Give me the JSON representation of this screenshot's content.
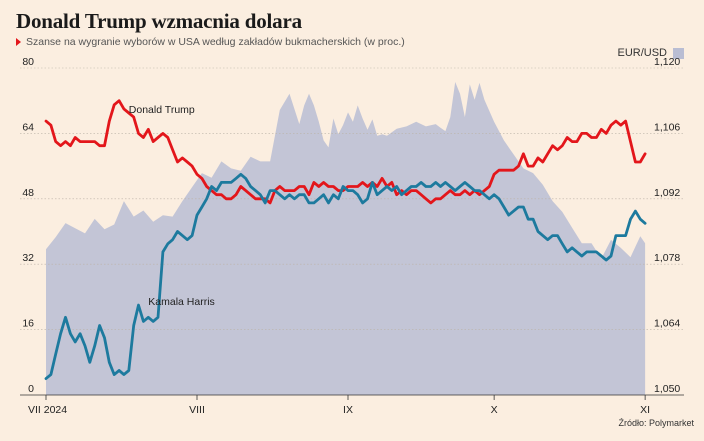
{
  "title": "Donald Trump wzmacnia dolara",
  "subtitle": "Szanse na wygranie wyborów w USA według zakładów bukmacherskich (w proc.)",
  "source": "Źródło: Polymarket",
  "colors": {
    "trump": "#e3161b",
    "harris": "#1d7a9e",
    "eur": "#b9bdd3",
    "background": "#fbeee0"
  },
  "chart_data": {
    "type": "line",
    "left_axis": {
      "min": 0,
      "max": 80,
      "ticks": [
        "80",
        "64",
        "48",
        "32",
        "16",
        "0"
      ]
    },
    "right_axis": {
      "label": "EUR/USD",
      "min": 1.05,
      "max": 1.12,
      "ticks": [
        "1,120",
        "1,106",
        "1,092",
        "1,078",
        "1,064",
        "1,050"
      ]
    },
    "x_axis": {
      "ticks": [
        "VII 2024",
        "VIII",
        "IX",
        "X",
        "XI"
      ],
      "tick_pos": [
        0,
        31,
        62,
        92,
        123
      ],
      "max_day": 124
    },
    "grid": true,
    "series": [
      {
        "name": "Donald Trump",
        "axis": "left",
        "label_at": [
          17,
          69
        ],
        "x": [
          0,
          1,
          2,
          3,
          4,
          5,
          6,
          7,
          8,
          9,
          10,
          11,
          12,
          13,
          14,
          15,
          16,
          17,
          18,
          19,
          20,
          21,
          22,
          23,
          24,
          25,
          26,
          27,
          28,
          29,
          30,
          31,
          32,
          33,
          34,
          35,
          36,
          37,
          38,
          39,
          40,
          41,
          42,
          43,
          44,
          45,
          46,
          47,
          48,
          49,
          50,
          51,
          52,
          53,
          54,
          55,
          56,
          57,
          58,
          59,
          60,
          61,
          62,
          63,
          64,
          65,
          66,
          67,
          68,
          69,
          70,
          71,
          72,
          73,
          74,
          75,
          76,
          77,
          78,
          79,
          80,
          81,
          82,
          83,
          84,
          85,
          86,
          87,
          88,
          89,
          90,
          91,
          92,
          93,
          94,
          95,
          96,
          97,
          98,
          99,
          100,
          101,
          102,
          103,
          104,
          105,
          106,
          107,
          108,
          109,
          110,
          111,
          112,
          113,
          114,
          115,
          116,
          117,
          118,
          119,
          120,
          121,
          122,
          123
        ],
        "values": [
          67,
          66,
          62,
          61,
          62,
          61,
          63,
          62,
          62,
          62,
          62,
          61,
          61,
          67,
          71,
          72,
          70,
          69,
          68,
          64,
          63,
          65,
          62,
          63,
          64,
          63,
          60,
          57,
          58,
          57,
          56,
          54,
          53,
          51,
          50,
          49,
          49,
          48,
          48,
          49,
          51,
          50,
          49,
          48,
          48,
          48,
          47,
          50,
          51,
          50,
          50,
          50,
          51,
          51,
          49,
          52,
          51,
          52,
          51,
          51,
          50,
          50,
          51,
          51,
          51,
          52,
          51,
          52,
          51,
          53,
          51,
          52,
          49,
          50,
          49,
          50,
          50,
          49,
          48,
          47,
          48,
          48,
          49,
          50,
          49,
          49,
          50,
          49,
          50,
          49,
          50,
          51,
          54,
          55,
          55,
          55,
          55,
          56,
          59,
          56,
          56,
          58,
          57,
          59,
          61,
          60,
          61,
          63,
          62,
          62,
          64,
          64,
          63,
          63,
          65,
          64,
          66,
          67,
          66,
          67,
          62,
          57,
          57,
          59
        ]
      },
      {
        "name": "Kamala Harris",
        "axis": "left",
        "label_at": [
          21,
          22
        ],
        "x": [
          0,
          1,
          2,
          3,
          4,
          5,
          6,
          7,
          8,
          9,
          10,
          11,
          12,
          13,
          14,
          15,
          16,
          17,
          18,
          19,
          20,
          21,
          22,
          23,
          24,
          25,
          26,
          27,
          28,
          29,
          30,
          31,
          32,
          33,
          34,
          35,
          36,
          37,
          38,
          39,
          40,
          41,
          42,
          43,
          44,
          45,
          46,
          47,
          48,
          49,
          50,
          51,
          52,
          53,
          54,
          55,
          56,
          57,
          58,
          59,
          60,
          61,
          62,
          63,
          64,
          65,
          66,
          67,
          68,
          69,
          70,
          71,
          72,
          73,
          74,
          75,
          76,
          77,
          78,
          79,
          80,
          81,
          82,
          83,
          84,
          85,
          86,
          87,
          88,
          89,
          90,
          91,
          92,
          93,
          94,
          95,
          96,
          97,
          98,
          99,
          100,
          101,
          102,
          103,
          104,
          105,
          106,
          107,
          108,
          109,
          110,
          111,
          112,
          113,
          114,
          115,
          116,
          117,
          118,
          119,
          120,
          121,
          122,
          123
        ],
        "values": [
          4,
          5,
          10,
          15,
          19,
          15,
          13,
          15,
          12,
          8,
          12,
          17,
          14,
          8,
          5,
          6,
          5,
          6,
          17,
          22,
          18,
          19,
          18,
          19,
          35,
          37,
          38,
          40,
          39,
          38,
          39,
          44,
          46,
          48,
          51,
          50,
          52,
          52,
          52,
          53,
          54,
          53,
          51,
          50,
          49,
          47,
          50,
          50,
          49,
          48,
          49,
          48,
          49,
          49,
          47,
          47,
          48,
          49,
          47,
          49,
          48,
          51,
          50,
          50,
          49,
          47,
          48,
          52,
          49,
          50,
          51,
          50,
          51,
          49,
          50,
          51,
          51,
          52,
          51,
          51,
          52,
          51,
          52,
          51,
          50,
          51,
          52,
          51,
          50,
          50,
          49,
          48,
          49,
          48,
          46,
          44,
          45,
          46,
          46,
          43,
          43,
          40,
          39,
          38,
          39,
          39,
          37,
          35,
          36,
          35,
          34,
          35,
          35,
          35,
          34,
          33,
          34,
          39,
          39,
          39,
          43,
          45,
          43,
          42
        ]
      },
      {
        "name": "EUR/USD",
        "axis": "right",
        "x": [
          0,
          2,
          4,
          6,
          8,
          10,
          12,
          14,
          16,
          18,
          20,
          22,
          24,
          26,
          28,
          30,
          32,
          34,
          36,
          38,
          40,
          42,
          44,
          46,
          48,
          50,
          52,
          53,
          54,
          55,
          56,
          57,
          58,
          59,
          60,
          61,
          62,
          63,
          64,
          65,
          66,
          67,
          68,
          69,
          70,
          72,
          74,
          76,
          78,
          80,
          81,
          82,
          83,
          84,
          85,
          86,
          87,
          88,
          89,
          90,
          92,
          94,
          96,
          98,
          100,
          102,
          104,
          106,
          108,
          110,
          112,
          114,
          116,
          118,
          120,
          122,
          123
        ],
        "values": [
          1.0812,
          1.0838,
          1.0868,
          1.0857,
          1.0846,
          1.0877,
          1.0855,
          1.0865,
          1.0915,
          1.0882,
          1.0895,
          1.0871,
          1.0885,
          1.0882,
          1.0915,
          1.0945,
          1.0975,
          1.0965,
          1.1,
          1.0985,
          1.098,
          1.101,
          1.1,
          1.1,
          1.111,
          1.1145,
          1.108,
          1.112,
          1.1145,
          1.112,
          1.1085,
          1.1045,
          1.103,
          1.1092,
          1.1058,
          1.1078,
          1.1105,
          1.1085,
          1.112,
          1.1092,
          1.1068,
          1.109,
          1.1055,
          1.1058,
          1.1055,
          1.107,
          1.1075,
          1.1085,
          1.1075,
          1.108,
          1.1072,
          1.1065,
          1.1095,
          1.117,
          1.1145,
          1.1095,
          1.1165,
          1.1132,
          1.1168,
          1.1132,
          1.1085,
          1.1045,
          1.1015,
          1.0985,
          1.0975,
          1.095,
          1.0915,
          1.0892,
          1.0858,
          1.0825,
          1.0825,
          1.0792,
          1.0832,
          1.0815,
          1.0795,
          1.084,
          1.0825
        ]
      }
    ]
  }
}
